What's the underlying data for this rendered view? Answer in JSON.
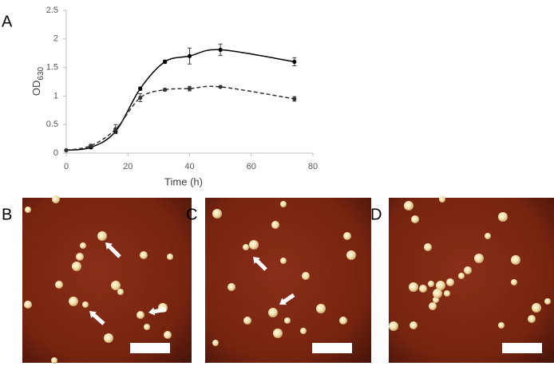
{
  "chart_data": {
    "type": "line",
    "panel_label": "A",
    "xlabel": "Time (h)",
    "ylabel": "OD",
    "ylabel_sub": "630",
    "xlim": [
      0,
      80
    ],
    "xticks": [
      0,
      20,
      40,
      60,
      80
    ],
    "ylim": [
      0,
      2.5
    ],
    "yticks": [
      0,
      0.5,
      1,
      1.5,
      2,
      2.5
    ],
    "grid": false,
    "x": [
      0,
      8,
      16,
      24,
      32,
      40,
      50,
      74
    ],
    "series": [
      {
        "color": "#000000",
        "dash": false,
        "values": [
          0.05,
          0.1,
          0.38,
          1.13,
          1.6,
          1.7,
          1.81,
          1.6
        ],
        "errors": [
          0.01,
          0.02,
          0.03,
          0.03,
          0.03,
          0.14,
          0.1,
          0.07
        ]
      },
      {
        "color": "#333333",
        "dash": true,
        "values": [
          0.05,
          0.13,
          0.42,
          0.97,
          1.11,
          1.13,
          1.16,
          0.95
        ],
        "errors": [
          0.01,
          0.02,
          0.08,
          0.07,
          0.02,
          0.04,
          0.01,
          0.04
        ]
      }
    ]
  },
  "panels": [
    {
      "label": "B"
    },
    {
      "label": "C"
    },
    {
      "label": "D"
    }
  ]
}
